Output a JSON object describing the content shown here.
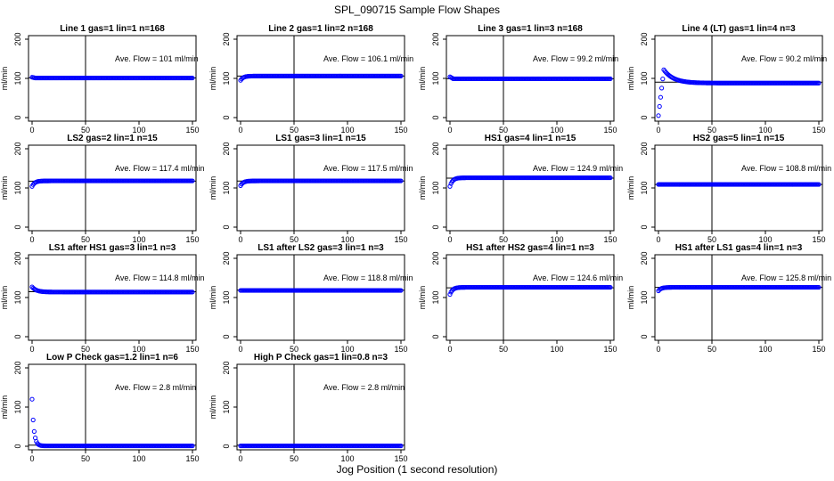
{
  "title": "SPL_090715  Sample Flow Shapes",
  "xlabel": "Jog Position (1 second resolution)",
  "colors": {
    "points": "#0000ff",
    "axes": "#000000"
  },
  "chart_data": [
    {
      "type": "scatter",
      "title": "Line 1 gas=1 lin=1 n=168",
      "ylabel": "ml/min",
      "xlim": [
        0,
        150
      ],
      "ylim": [
        0,
        200
      ],
      "xticks": [
        "0",
        "50",
        "100",
        "150"
      ],
      "yticks": [
        "0",
        "100",
        "200"
      ],
      "vline_x": 50,
      "hline_y": 101,
      "annotation": "Ave. Flow =  101  ml/min",
      "shape": {
        "type": "flat",
        "level": 101,
        "start": 103
      }
    },
    {
      "type": "scatter",
      "title": "Line 2 gas=1 lin=2 n=168",
      "ylabel": "ml/min",
      "xlim": [
        0,
        150
      ],
      "ylim": [
        0,
        200
      ],
      "xticks": [
        "0",
        "50",
        "100",
        "150"
      ],
      "yticks": [
        "0",
        "100",
        "200"
      ],
      "vline_x": 50,
      "hline_y": 106.1,
      "annotation": "Ave. Flow =  106.1  ml/min",
      "shape": {
        "type": "rise",
        "level": 106,
        "start": 95
      }
    },
    {
      "type": "scatter",
      "title": "Line 3 gas=1 lin=3 n=168",
      "ylabel": "ml/min",
      "xlim": [
        0,
        150
      ],
      "ylim": [
        0,
        200
      ],
      "xticks": [
        "0",
        "50",
        "100",
        "150"
      ],
      "yticks": [
        "0",
        "100",
        "200"
      ],
      "vline_x": 50,
      "hline_y": 99.2,
      "annotation": "Ave. Flow =  99.2  ml/min",
      "shape": {
        "type": "flat",
        "level": 99,
        "start": 104
      }
    },
    {
      "type": "scatter",
      "title": "Line 4 (LT) gas=1 lin=4 n=3",
      "ylabel": "ml/min",
      "xlim": [
        0,
        150
      ],
      "ylim": [
        0,
        200
      ],
      "xticks": [
        "0",
        "50",
        "100",
        "150"
      ],
      "yticks": [
        "0",
        "100",
        "200"
      ],
      "vline_x": 50,
      "hline_y": 90.2,
      "annotation": "Ave. Flow =  90.2  ml/min",
      "shape": {
        "type": "overshoot",
        "level": 88,
        "start": 5,
        "peak": 122
      }
    },
    {
      "type": "scatter",
      "title": "LS2 gas=2 lin=1 n=15",
      "ylabel": "ml/min",
      "xlim": [
        0,
        150
      ],
      "ylim": [
        0,
        200
      ],
      "xticks": [
        "0",
        "50",
        "100",
        "150"
      ],
      "yticks": [
        "0",
        "100",
        "200"
      ],
      "vline_x": 50,
      "hline_y": 117.4,
      "annotation": "Ave. Flow =  117.4  ml/min",
      "shape": {
        "type": "rise",
        "level": 118,
        "start": 104
      }
    },
    {
      "type": "scatter",
      "title": "LS1 gas=3 lin=1 n=15",
      "ylabel": "ml/min",
      "xlim": [
        0,
        150
      ],
      "ylim": [
        0,
        200
      ],
      "xticks": [
        "0",
        "50",
        "100",
        "150"
      ],
      "yticks": [
        "0",
        "100",
        "200"
      ],
      "vline_x": 50,
      "hline_y": 117.5,
      "annotation": "Ave. Flow =  117.5  ml/min",
      "shape": {
        "type": "rise",
        "level": 118,
        "start": 106
      }
    },
    {
      "type": "scatter",
      "title": "HS1 gas=4 lin=1 n=15",
      "ylabel": "ml/min",
      "xlim": [
        0,
        150
      ],
      "ylim": [
        0,
        200
      ],
      "xticks": [
        "0",
        "50",
        "100",
        "150"
      ],
      "yticks": [
        "0",
        "100",
        "200"
      ],
      "vline_x": 50,
      "hline_y": 124.9,
      "annotation": "Ave. Flow =  124.9  ml/min",
      "shape": {
        "type": "rise",
        "level": 126,
        "start": 104
      }
    },
    {
      "type": "scatter",
      "title": "HS2 gas=5 lin=1 n=15",
      "ylabel": "ml/min",
      "xlim": [
        0,
        150
      ],
      "ylim": [
        0,
        200
      ],
      "xticks": [
        "0",
        "50",
        "100",
        "150"
      ],
      "yticks": [
        "0",
        "100",
        "200"
      ],
      "vline_x": 50,
      "hline_y": 108.8,
      "annotation": "Ave. Flow =  108.8  ml/min",
      "shape": {
        "type": "flat",
        "level": 109,
        "start": 109
      }
    },
    {
      "type": "scatter",
      "title": "LS1 after HS1 gas=3 lin=1 n=3",
      "ylabel": "ml/min",
      "xlim": [
        0,
        150
      ],
      "ylim": [
        0,
        200
      ],
      "xticks": [
        "0",
        "50",
        "100",
        "150"
      ],
      "yticks": [
        "0",
        "100",
        "200"
      ],
      "vline_x": 50,
      "hline_y": 114.8,
      "annotation": "Ave. Flow =  114.8  ml/min",
      "shape": {
        "type": "fall",
        "level": 114,
        "start": 127
      }
    },
    {
      "type": "scatter",
      "title": "LS1 after LS2 gas=3 lin=1 n=3",
      "ylabel": "ml/min",
      "xlim": [
        0,
        150
      ],
      "ylim": [
        0,
        200
      ],
      "xticks": [
        "0",
        "50",
        "100",
        "150"
      ],
      "yticks": [
        "0",
        "100",
        "200"
      ],
      "vline_x": 50,
      "hline_y": 118.8,
      "annotation": "Ave. Flow =  118.8  ml/min",
      "shape": {
        "type": "flat",
        "level": 118,
        "start": 118
      }
    },
    {
      "type": "scatter",
      "title": "HS1 after HS2 gas=4 lin=1 n=3",
      "ylabel": "ml/min",
      "xlim": [
        0,
        150
      ],
      "ylim": [
        0,
        200
      ],
      "xticks": [
        "0",
        "50",
        "100",
        "150"
      ],
      "yticks": [
        "0",
        "100",
        "200"
      ],
      "vline_x": 50,
      "hline_y": 124.6,
      "annotation": "Ave. Flow =  124.6  ml/min",
      "shape": {
        "type": "rise",
        "level": 126,
        "start": 108
      }
    },
    {
      "type": "scatter",
      "title": "HS1 after LS1 gas=4 lin=1 n=3",
      "ylabel": "ml/min",
      "xlim": [
        0,
        150
      ],
      "ylim": [
        0,
        200
      ],
      "xticks": [
        "0",
        "50",
        "100",
        "150"
      ],
      "yticks": [
        "0",
        "100",
        "200"
      ],
      "vline_x": 50,
      "hline_y": 125.8,
      "annotation": "Ave. Flow =  125.8  ml/min",
      "shape": {
        "type": "rise",
        "level": 126,
        "start": 117
      }
    },
    {
      "type": "scatter",
      "title": "Low P Check gas=1.2 lin=1 n=6",
      "ylabel": "ml/min",
      "xlim": [
        0,
        150
      ],
      "ylim": [
        0,
        200
      ],
      "xticks": [
        "0",
        "50",
        "100",
        "150"
      ],
      "yticks": [
        "0",
        "100",
        "200"
      ],
      "vline_x": 50,
      "hline_y": 2.8,
      "annotation": "Ave. Flow =  2.8  ml/min",
      "shape": {
        "type": "decay",
        "level": 1,
        "start": 120
      }
    },
    {
      "type": "scatter",
      "title": "High P Check gas=1 lin=0.8 n=3",
      "ylabel": "ml/min",
      "xlim": [
        0,
        150
      ],
      "ylim": [
        0,
        200
      ],
      "xticks": [
        "0",
        "50",
        "100",
        "150"
      ],
      "yticks": [
        "0",
        "100",
        "200"
      ],
      "vline_x": 50,
      "hline_y": 2.8,
      "annotation": "Ave. Flow =  2.8  ml/min",
      "shape": {
        "type": "flat",
        "level": 1,
        "start": 1
      }
    }
  ]
}
